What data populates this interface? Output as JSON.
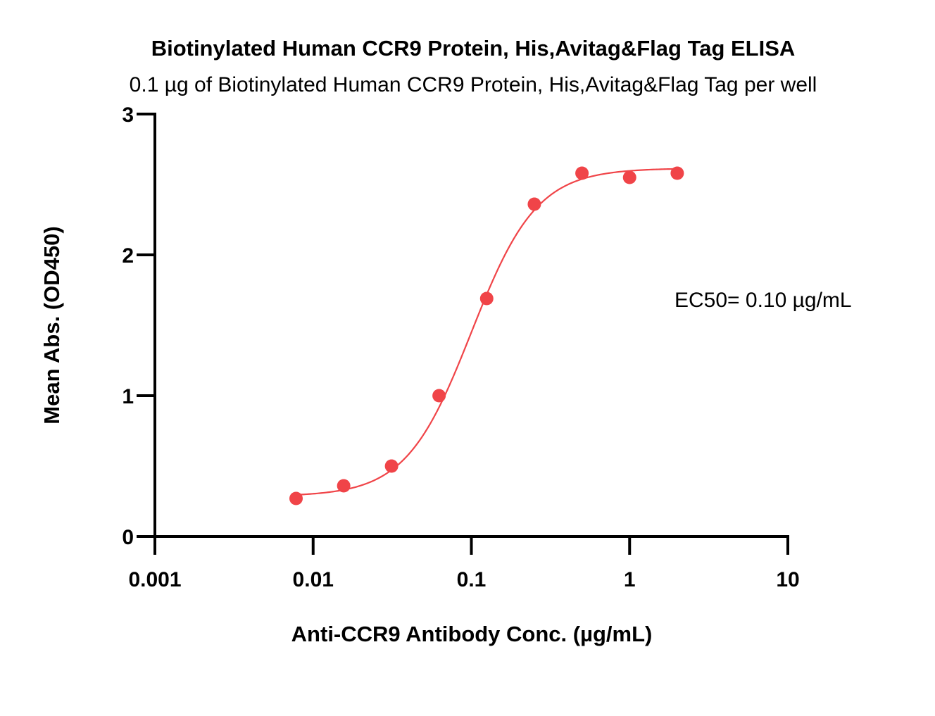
{
  "chart_data": {
    "type": "scatter",
    "title": "Biotinylated Human CCR9 Protein, His,Avitag&Flag Tag ELISA",
    "subtitle": "0.1 µg of Biotinylated Human CCR9 Protein, His,Avitag&Flag Tag per well",
    "xlabel": "Anti-CCR9 Antibody Conc. (µg/mL)",
    "ylabel": "Mean Abs. (OD450)",
    "x_scale": "log",
    "xlim": [
      0.001,
      10
    ],
    "ylim": [
      0,
      3
    ],
    "x_ticks": [
      {
        "value": 0.001,
        "label": "0.001"
      },
      {
        "value": 0.01,
        "label": "0.01"
      },
      {
        "value": 0.1,
        "label": "0.1"
      },
      {
        "value": 1,
        "label": "1"
      },
      {
        "value": 10,
        "label": "10"
      }
    ],
    "y_ticks": [
      {
        "value": 0,
        "label": "0"
      },
      {
        "value": 1,
        "label": "1"
      },
      {
        "value": 2,
        "label": "2"
      },
      {
        "value": 3,
        "label": "3"
      }
    ],
    "grid": false,
    "legend": "none",
    "series": [
      {
        "color": "#f04448",
        "x": [
          0.0078,
          0.0156,
          0.0313,
          0.0625,
          0.125,
          0.25,
          0.5,
          1,
          2
        ],
        "y": [
          0.27,
          0.36,
          0.5,
          1.0,
          1.69,
          2.36,
          2.58,
          2.55,
          2.58
        ],
        "fit": {
          "model": "4PL",
          "bottom": 0.285,
          "top": 2.615,
          "ec50": 0.1,
          "hill": 2.1
        }
      }
    ],
    "annotation": "EC50= 0.10 µg/mL"
  }
}
